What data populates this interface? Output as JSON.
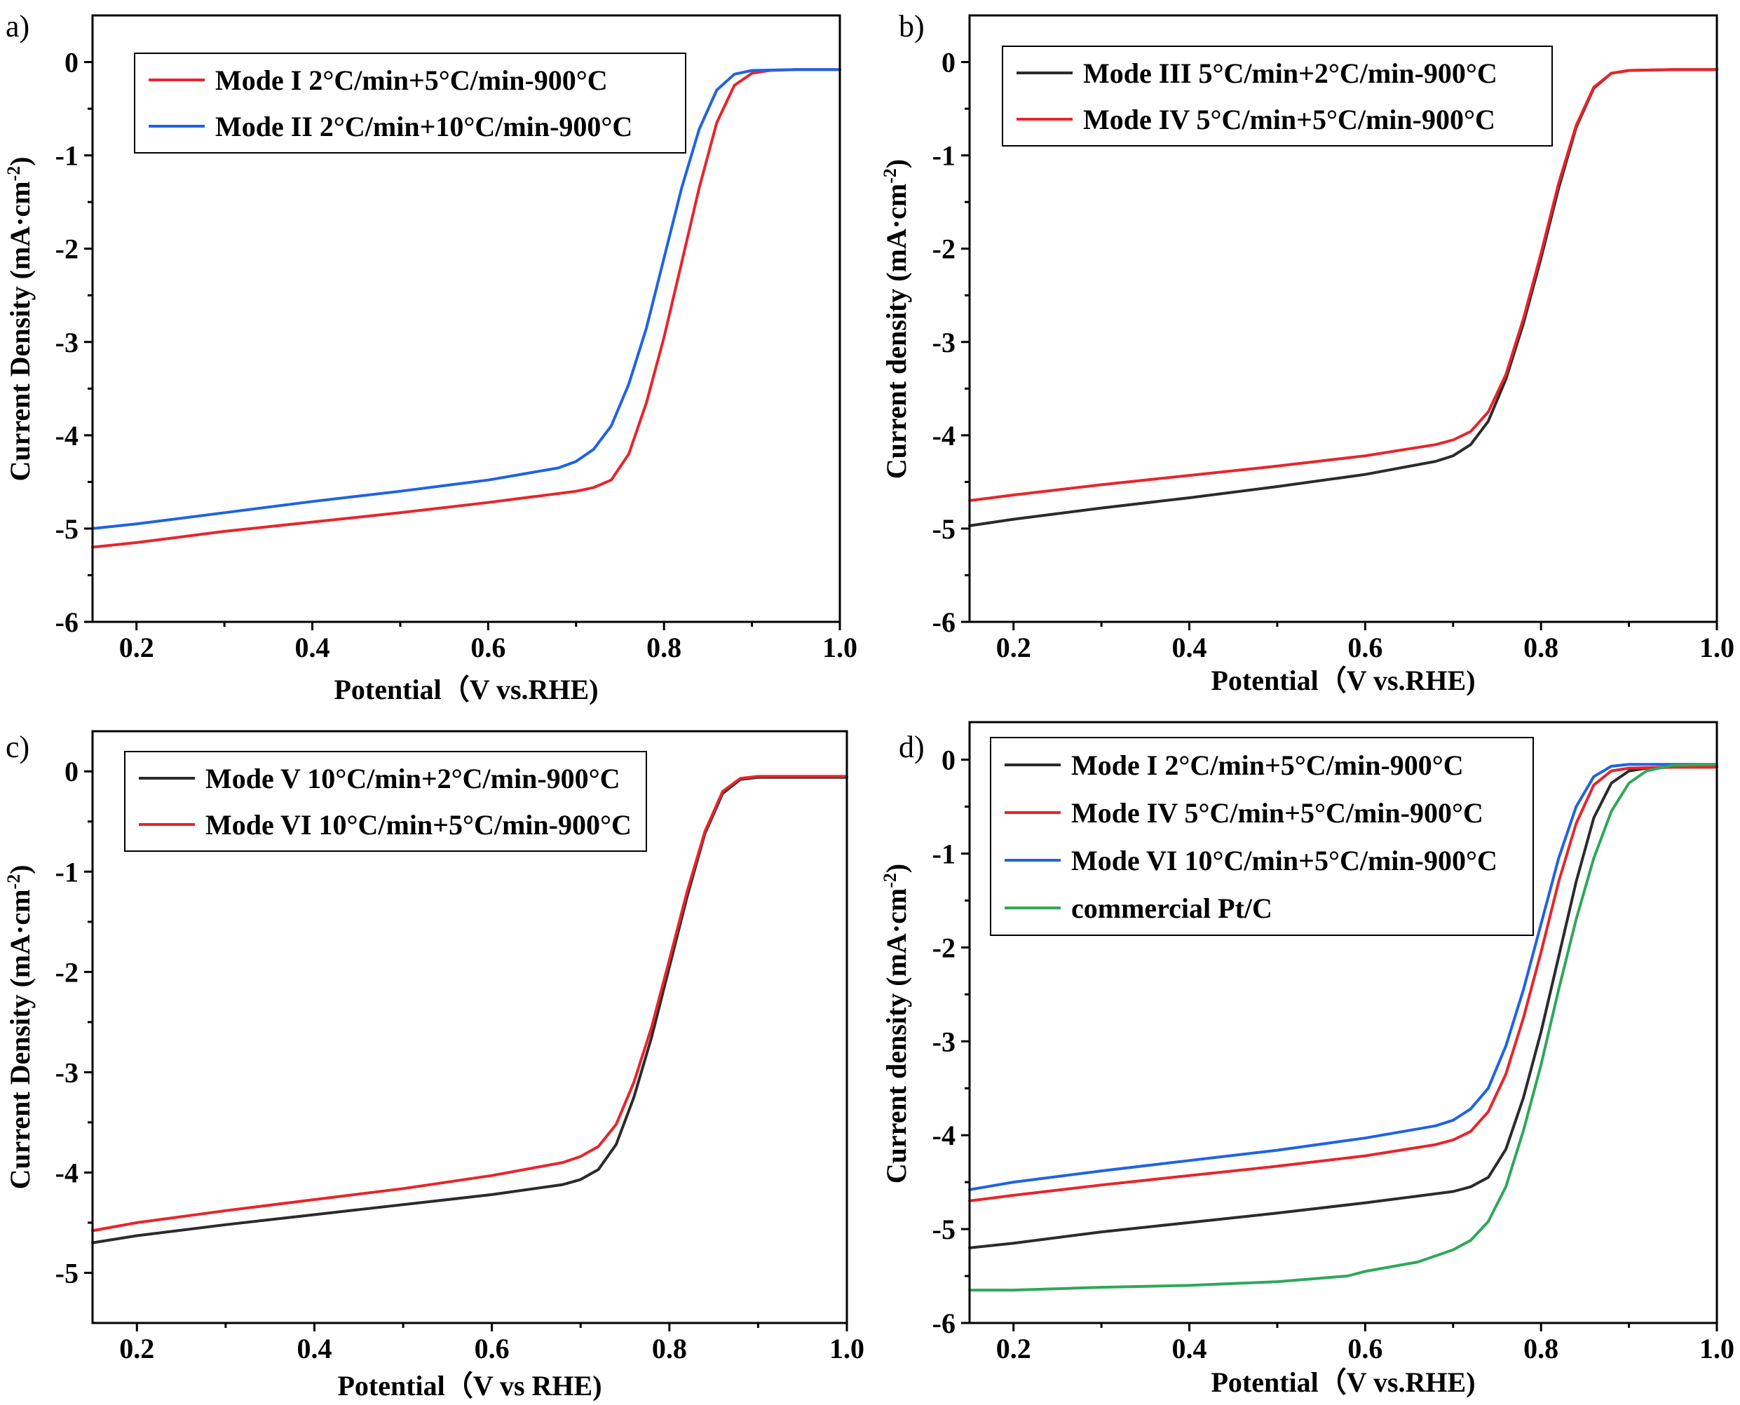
{
  "figure": {
    "background": "#ffffff"
  },
  "chart_data": [
    {
      "panel": "a)",
      "type": "line",
      "xlabel": "Potential（V vs.RHE)",
      "ylabel": "Current Density (mA·cm",
      "ylabel_sup": "-2",
      "ylabel_end": ")",
      "xlim": [
        0.15,
        1.0
      ],
      "ylim": [
        -6,
        0.5
      ],
      "xticks": [
        0.2,
        0.4,
        0.6,
        0.8,
        1.0
      ],
      "xtick_labels": [
        "0.2",
        "0.4",
        "0.6",
        "0.8",
        "1.0"
      ],
      "yticks": [
        0,
        -1,
        -2,
        -3,
        -4,
        -5,
        -6
      ],
      "ytick_labels": [
        "0",
        "-1",
        "-2",
        "-3",
        "-4",
        "-5",
        "-6"
      ],
      "legend_position": "top-left",
      "series": [
        {
          "name": "Mode I 2°C/min+5°C/min-900°C",
          "color": "#e8252b",
          "x": [
            0.15,
            0.2,
            0.3,
            0.4,
            0.5,
            0.6,
            0.7,
            0.72,
            0.74,
            0.76,
            0.78,
            0.8,
            0.82,
            0.84,
            0.86,
            0.88,
            0.9,
            0.92,
            0.95,
            1.0
          ],
          "y": [
            -5.2,
            -5.15,
            -5.03,
            -4.93,
            -4.83,
            -4.72,
            -4.6,
            -4.56,
            -4.48,
            -4.2,
            -3.65,
            -2.95,
            -2.15,
            -1.35,
            -0.65,
            -0.25,
            -0.12,
            -0.09,
            -0.08,
            -0.08
          ]
        },
        {
          "name": "Mode II 2°C/min+10°C/min-900°C",
          "color": "#1f63e6",
          "x": [
            0.15,
            0.2,
            0.3,
            0.4,
            0.5,
            0.6,
            0.68,
            0.7,
            0.72,
            0.74,
            0.76,
            0.78,
            0.8,
            0.82,
            0.84,
            0.86,
            0.88,
            0.9,
            0.95,
            1.0
          ],
          "y": [
            -5.0,
            -4.95,
            -4.83,
            -4.71,
            -4.6,
            -4.48,
            -4.35,
            -4.28,
            -4.15,
            -3.9,
            -3.45,
            -2.85,
            -2.1,
            -1.35,
            -0.72,
            -0.3,
            -0.13,
            -0.09,
            -0.08,
            -0.08
          ]
        }
      ]
    },
    {
      "panel": "b)",
      "type": "line",
      "xlabel": "Potential（V vs.RHE)",
      "ylabel": "Current density (mA·cm",
      "ylabel_sup": "-2",
      "ylabel_end": ")",
      "xlim": [
        0.15,
        1.0
      ],
      "ylim": [
        -6,
        0.5
      ],
      "xticks": [
        0.2,
        0.4,
        0.6,
        0.8,
        1.0
      ],
      "xtick_labels": [
        "0.2",
        "0.4",
        "0.6",
        "0.8",
        "1.0"
      ],
      "yticks": [
        0,
        -1,
        -2,
        -3,
        -4,
        -5,
        -6
      ],
      "ytick_labels": [
        "0",
        "-1",
        "-2",
        "-3",
        "-4",
        "-5",
        "-6"
      ],
      "legend_position": "top-left",
      "series": [
        {
          "name": "Mode III 5°C/min+2°C/min-900°C",
          "color": "#2b2b2b",
          "x": [
            0.15,
            0.2,
            0.3,
            0.4,
            0.5,
            0.6,
            0.68,
            0.7,
            0.72,
            0.74,
            0.76,
            0.78,
            0.8,
            0.82,
            0.84,
            0.86,
            0.88,
            0.9,
            0.95,
            1.0
          ],
          "y": [
            -4.97,
            -4.9,
            -4.78,
            -4.67,
            -4.55,
            -4.42,
            -4.28,
            -4.22,
            -4.1,
            -3.85,
            -3.4,
            -2.8,
            -2.1,
            -1.35,
            -0.7,
            -0.28,
            -0.12,
            -0.09,
            -0.08,
            -0.08
          ]
        },
        {
          "name": "Mode IV 5°C/min+5°C/min-900°C",
          "color": "#e8252b",
          "x": [
            0.15,
            0.2,
            0.3,
            0.4,
            0.5,
            0.6,
            0.68,
            0.7,
            0.72,
            0.74,
            0.76,
            0.78,
            0.8,
            0.82,
            0.84,
            0.86,
            0.88,
            0.9,
            0.95,
            1.0
          ],
          "y": [
            -4.7,
            -4.64,
            -4.53,
            -4.43,
            -4.33,
            -4.22,
            -4.1,
            -4.05,
            -3.96,
            -3.75,
            -3.35,
            -2.75,
            -2.05,
            -1.3,
            -0.68,
            -0.27,
            -0.12,
            -0.09,
            -0.08,
            -0.08
          ]
        }
      ]
    },
    {
      "panel": "c)",
      "type": "line",
      "xlabel": "Potential（V vs RHE)",
      "ylabel": "Current Density (mA·cm",
      "ylabel_sup": "-2",
      "ylabel_end": ")",
      "xlim": [
        0.15,
        1.0
      ],
      "ylim": [
        -5.5,
        0.4
      ],
      "xticks": [
        0.2,
        0.4,
        0.6,
        0.8,
        1.0
      ],
      "xtick_labels": [
        "0.2",
        "0.4",
        "0.6",
        "0.8",
        "1.0"
      ],
      "yticks": [
        0,
        -1,
        -2,
        -3,
        -4,
        -5
      ],
      "ytick_labels": [
        "0",
        "-1",
        "-2",
        "-3",
        "-4",
        "-5"
      ],
      "legend_position": "top-left",
      "series": [
        {
          "name": "Mode V  10°C/min+2°C/min-900°C",
          "color": "#2b2b2b",
          "x": [
            0.15,
            0.2,
            0.3,
            0.4,
            0.5,
            0.6,
            0.68,
            0.7,
            0.72,
            0.74,
            0.76,
            0.78,
            0.8,
            0.82,
            0.84,
            0.86,
            0.88,
            0.9,
            0.95,
            1.0
          ],
          "y": [
            -4.7,
            -4.63,
            -4.52,
            -4.42,
            -4.32,
            -4.22,
            -4.12,
            -4.07,
            -3.97,
            -3.72,
            -3.25,
            -2.65,
            -1.95,
            -1.25,
            -0.62,
            -0.22,
            -0.08,
            -0.06,
            -0.06,
            -0.06
          ]
        },
        {
          "name": "Mode VI 10°C/min+5°C/min-900°C",
          "color": "#e8252b",
          "x": [
            0.15,
            0.2,
            0.3,
            0.4,
            0.5,
            0.6,
            0.68,
            0.7,
            0.72,
            0.74,
            0.76,
            0.78,
            0.8,
            0.82,
            0.84,
            0.86,
            0.88,
            0.9,
            0.95,
            1.0
          ],
          "y": [
            -4.58,
            -4.5,
            -4.38,
            -4.27,
            -4.16,
            -4.03,
            -3.9,
            -3.84,
            -3.74,
            -3.52,
            -3.1,
            -2.55,
            -1.88,
            -1.2,
            -0.6,
            -0.2,
            -0.07,
            -0.05,
            -0.05,
            -0.05
          ]
        }
      ]
    },
    {
      "panel": "d)",
      "type": "line",
      "xlabel": "Potential（V vs.RHE)",
      "ylabel": "Current density (mA·cm",
      "ylabel_sup": "-2",
      "ylabel_end": ")",
      "xlim": [
        0.15,
        1.0
      ],
      "ylim": [
        -6,
        0.4
      ],
      "xticks": [
        0.2,
        0.4,
        0.6,
        0.8,
        1.0
      ],
      "xtick_labels": [
        "0.2",
        "0.4",
        "0.6",
        "0.8",
        "1.0"
      ],
      "yticks": [
        0,
        -1,
        -2,
        -3,
        -4,
        -5,
        -6
      ],
      "ytick_labels": [
        "0",
        "-1",
        "-2",
        "-3",
        "-4",
        "-5",
        "-6"
      ],
      "legend_position": "top-left",
      "series": [
        {
          "name": "Mode I 2°C/min+5°C/min-900°C",
          "color": "#2b2b2b",
          "x": [
            0.15,
            0.2,
            0.3,
            0.4,
            0.5,
            0.6,
            0.7,
            0.72,
            0.74,
            0.76,
            0.78,
            0.8,
            0.82,
            0.84,
            0.86,
            0.88,
            0.9,
            0.92,
            0.95,
            1.0
          ],
          "y": [
            -5.2,
            -5.15,
            -5.03,
            -4.93,
            -4.83,
            -4.72,
            -4.6,
            -4.55,
            -4.45,
            -4.15,
            -3.6,
            -2.9,
            -2.1,
            -1.3,
            -0.62,
            -0.25,
            -0.12,
            -0.09,
            -0.08,
            -0.08
          ]
        },
        {
          "name": "Mode IV 5°C/min+5°C/min-900°C",
          "color": "#e8252b",
          "x": [
            0.15,
            0.2,
            0.3,
            0.4,
            0.5,
            0.6,
            0.68,
            0.7,
            0.72,
            0.74,
            0.76,
            0.78,
            0.8,
            0.82,
            0.84,
            0.86,
            0.88,
            0.9,
            0.95,
            1.0
          ],
          "y": [
            -4.7,
            -4.64,
            -4.53,
            -4.43,
            -4.33,
            -4.22,
            -4.1,
            -4.05,
            -3.96,
            -3.75,
            -3.35,
            -2.75,
            -2.05,
            -1.3,
            -0.68,
            -0.27,
            -0.12,
            -0.09,
            -0.08,
            -0.08
          ]
        },
        {
          "name": "Mode VI 10°C/min+5°C/min-900°C",
          "color": "#1f63e6",
          "x": [
            0.15,
            0.2,
            0.3,
            0.4,
            0.5,
            0.6,
            0.68,
            0.7,
            0.72,
            0.74,
            0.76,
            0.78,
            0.8,
            0.82,
            0.84,
            0.86,
            0.88,
            0.9,
            0.95,
            1.0
          ],
          "y": [
            -4.58,
            -4.5,
            -4.38,
            -4.27,
            -4.16,
            -4.03,
            -3.9,
            -3.84,
            -3.72,
            -3.5,
            -3.05,
            -2.45,
            -1.75,
            -1.05,
            -0.5,
            -0.18,
            -0.07,
            -0.05,
            -0.05,
            -0.05
          ]
        },
        {
          "name": "commercial Pt/C",
          "color": "#2ea85a",
          "x": [
            0.15,
            0.2,
            0.3,
            0.4,
            0.5,
            0.58,
            0.6,
            0.66,
            0.7,
            0.72,
            0.74,
            0.76,
            0.78,
            0.8,
            0.82,
            0.84,
            0.86,
            0.88,
            0.9,
            0.92,
            0.95,
            1.0
          ],
          "y": [
            -5.65,
            -5.65,
            -5.62,
            -5.6,
            -5.56,
            -5.5,
            -5.45,
            -5.35,
            -5.22,
            -5.12,
            -4.92,
            -4.55,
            -3.95,
            -3.25,
            -2.45,
            -1.7,
            -1.05,
            -0.55,
            -0.25,
            -0.12,
            -0.06,
            -0.05
          ]
        }
      ]
    }
  ]
}
